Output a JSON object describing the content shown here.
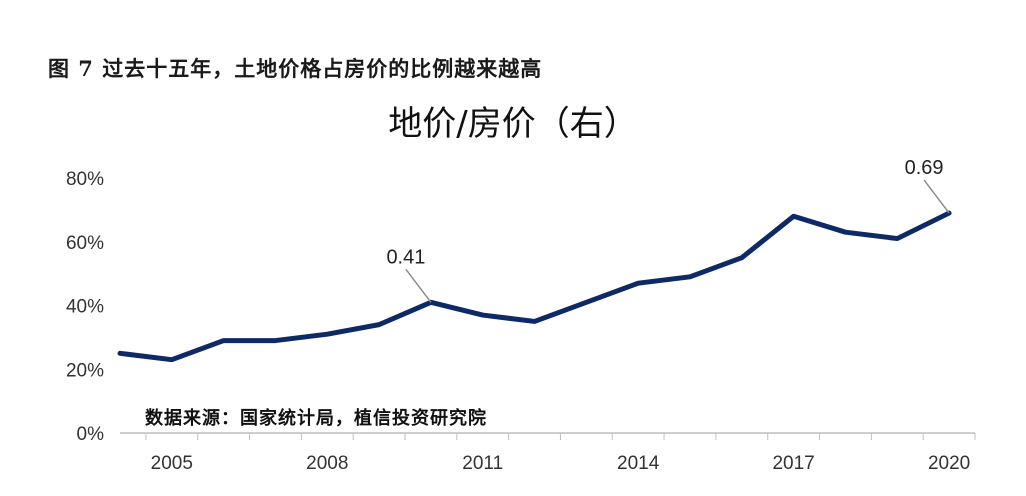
{
  "caption": "图 7 过去十五年，土地价格占房价的比例越来越高",
  "source": "数据来源：国家统计局，植信投资研究院",
  "colors": {
    "line": "#0e2a66",
    "axis": "#bfbfbf",
    "leader": "#8c8c8c"
  },
  "chart_data": {
    "type": "line",
    "title": "地价/房价（右）",
    "xlabel": "",
    "ylabel": "",
    "x": [
      2004,
      2005,
      2006,
      2007,
      2008,
      2009,
      2010,
      2011,
      2012,
      2013,
      2014,
      2015,
      2016,
      2017,
      2018,
      2019,
      2020
    ],
    "series": [
      {
        "name": "",
        "values": [
          0.25,
          0.23,
          0.29,
          0.29,
          0.31,
          0.34,
          0.41,
          0.37,
          0.35,
          0.41,
          0.47,
          0.49,
          0.55,
          0.68,
          0.63,
          0.61,
          0.69
        ]
      }
    ],
    "ylim": [
      0,
      0.8
    ],
    "xlim": [
      2004,
      2020.5
    ],
    "y_ticks": [
      "0%",
      "20%",
      "40%",
      "60%",
      "80%"
    ],
    "x_ticks": [
      "2005",
      "2008",
      "2011",
      "2014",
      "2017",
      "2020"
    ],
    "grid": false,
    "legend": "none",
    "annotations": [
      {
        "x": 2010,
        "y": 0.41,
        "text": "0.41"
      },
      {
        "x": 2020,
        "y": 0.69,
        "text": "0.69"
      }
    ]
  }
}
